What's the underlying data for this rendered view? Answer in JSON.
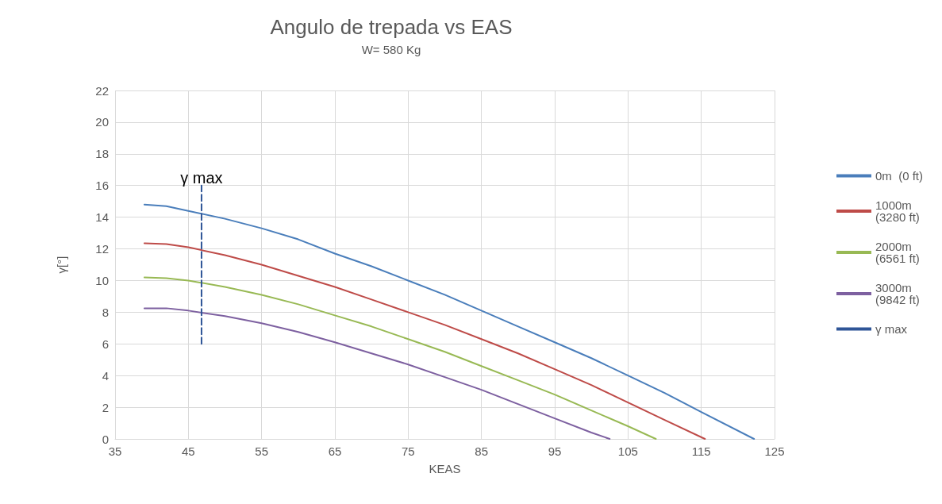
{
  "chart_data": {
    "type": "line",
    "title": "Angulo de trepada vs EAS",
    "subtitle": "W= 580 Kg",
    "xlabel": "KEAS",
    "ylabel": "γ[°]",
    "xlim": [
      35,
      125
    ],
    "xticks": [
      35,
      45,
      55,
      65,
      75,
      85,
      95,
      105,
      115,
      125
    ],
    "ylim": [
      0,
      22
    ],
    "yticks": [
      0,
      2,
      4,
      6,
      8,
      10,
      12,
      14,
      16,
      18,
      20,
      22
    ],
    "grid": true,
    "legend": "right",
    "marker": "none",
    "annotations": [
      {
        "text": "γ max",
        "x": 46.8,
        "y": 16
      }
    ],
    "series": [
      {
        "name": "0m  (0 ft)",
        "color": "#4a7ebb",
        "x": [
          39,
          42,
          45,
          50,
          55,
          60,
          65,
          70,
          75,
          80,
          85,
          90,
          95,
          100,
          105,
          110,
          115,
          122.2
        ],
        "values": [
          14.8,
          14.7,
          14.4,
          13.9,
          13.3,
          12.6,
          11.7,
          10.9,
          10.0,
          9.1,
          8.1,
          7.1,
          6.1,
          5.1,
          4.0,
          2.9,
          1.7,
          0
        ]
      },
      {
        "name": "1000m (3280 ft)",
        "color": "#be4b48",
        "x": [
          39,
          42,
          45,
          50,
          55,
          60,
          65,
          70,
          75,
          80,
          85,
          90,
          95,
          100,
          105,
          110,
          115.5
        ],
        "values": [
          12.35,
          12.3,
          12.1,
          11.6,
          11.0,
          10.3,
          9.6,
          8.8,
          8.0,
          7.2,
          6.3,
          5.4,
          4.4,
          3.4,
          2.3,
          1.2,
          0
        ]
      },
      {
        "name": "2000m (6561 ft)",
        "color": "#98b954",
        "x": [
          39,
          42,
          45,
          50,
          55,
          60,
          65,
          70,
          75,
          80,
          85,
          90,
          95,
          100,
          105,
          108.8
        ],
        "values": [
          10.2,
          10.15,
          10.0,
          9.6,
          9.1,
          8.5,
          7.8,
          7.1,
          6.3,
          5.5,
          4.6,
          3.7,
          2.8,
          1.8,
          0.8,
          0
        ]
      },
      {
        "name": "3000m (9842 ft)",
        "color": "#7d60a0",
        "x": [
          39,
          42,
          45,
          50,
          55,
          60,
          65,
          70,
          75,
          80,
          85,
          90,
          95,
          100,
          102.5
        ],
        "values": [
          8.25,
          8.25,
          8.1,
          7.75,
          7.3,
          6.75,
          6.1,
          5.4,
          4.7,
          3.9,
          3.1,
          2.2,
          1.3,
          0.4,
          0
        ]
      },
      {
        "name": "γ max",
        "color": "#2f5597",
        "line_style": "dashed",
        "x": [
          46.8,
          46.8
        ],
        "values": [
          6,
          16
        ]
      }
    ]
  }
}
